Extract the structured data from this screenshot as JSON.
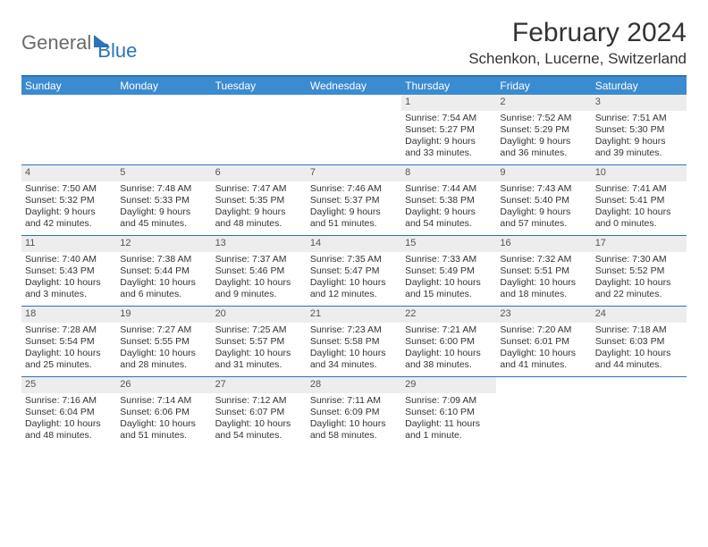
{
  "logo": {
    "part1": "General",
    "part2": "Blue"
  },
  "title": "February 2024",
  "location": "Schenkon, Lucerne, Switzerland",
  "colors": {
    "header_bg": "#3b8bd0",
    "border": "#2a73b8",
    "daynum_bg": "#ededed",
    "text": "#333333",
    "logo_gray": "#6a6a6a"
  },
  "daysOfWeek": [
    "Sunday",
    "Monday",
    "Tuesday",
    "Wednesday",
    "Thursday",
    "Friday",
    "Saturday"
  ],
  "weeks": [
    [
      {
        "empty": true
      },
      {
        "empty": true
      },
      {
        "empty": true
      },
      {
        "empty": true
      },
      {
        "num": "1",
        "sunrise": "Sunrise: 7:54 AM",
        "sunset": "Sunset: 5:27 PM",
        "daylight1": "Daylight: 9 hours",
        "daylight2": "and 33 minutes."
      },
      {
        "num": "2",
        "sunrise": "Sunrise: 7:52 AM",
        "sunset": "Sunset: 5:29 PM",
        "daylight1": "Daylight: 9 hours",
        "daylight2": "and 36 minutes."
      },
      {
        "num": "3",
        "sunrise": "Sunrise: 7:51 AM",
        "sunset": "Sunset: 5:30 PM",
        "daylight1": "Daylight: 9 hours",
        "daylight2": "and 39 minutes."
      }
    ],
    [
      {
        "num": "4",
        "sunrise": "Sunrise: 7:50 AM",
        "sunset": "Sunset: 5:32 PM",
        "daylight1": "Daylight: 9 hours",
        "daylight2": "and 42 minutes."
      },
      {
        "num": "5",
        "sunrise": "Sunrise: 7:48 AM",
        "sunset": "Sunset: 5:33 PM",
        "daylight1": "Daylight: 9 hours",
        "daylight2": "and 45 minutes."
      },
      {
        "num": "6",
        "sunrise": "Sunrise: 7:47 AM",
        "sunset": "Sunset: 5:35 PM",
        "daylight1": "Daylight: 9 hours",
        "daylight2": "and 48 minutes."
      },
      {
        "num": "7",
        "sunrise": "Sunrise: 7:46 AM",
        "sunset": "Sunset: 5:37 PM",
        "daylight1": "Daylight: 9 hours",
        "daylight2": "and 51 minutes."
      },
      {
        "num": "8",
        "sunrise": "Sunrise: 7:44 AM",
        "sunset": "Sunset: 5:38 PM",
        "daylight1": "Daylight: 9 hours",
        "daylight2": "and 54 minutes."
      },
      {
        "num": "9",
        "sunrise": "Sunrise: 7:43 AM",
        "sunset": "Sunset: 5:40 PM",
        "daylight1": "Daylight: 9 hours",
        "daylight2": "and 57 minutes."
      },
      {
        "num": "10",
        "sunrise": "Sunrise: 7:41 AM",
        "sunset": "Sunset: 5:41 PM",
        "daylight1": "Daylight: 10 hours",
        "daylight2": "and 0 minutes."
      }
    ],
    [
      {
        "num": "11",
        "sunrise": "Sunrise: 7:40 AM",
        "sunset": "Sunset: 5:43 PM",
        "daylight1": "Daylight: 10 hours",
        "daylight2": "and 3 minutes."
      },
      {
        "num": "12",
        "sunrise": "Sunrise: 7:38 AM",
        "sunset": "Sunset: 5:44 PM",
        "daylight1": "Daylight: 10 hours",
        "daylight2": "and 6 minutes."
      },
      {
        "num": "13",
        "sunrise": "Sunrise: 7:37 AM",
        "sunset": "Sunset: 5:46 PM",
        "daylight1": "Daylight: 10 hours",
        "daylight2": "and 9 minutes."
      },
      {
        "num": "14",
        "sunrise": "Sunrise: 7:35 AM",
        "sunset": "Sunset: 5:47 PM",
        "daylight1": "Daylight: 10 hours",
        "daylight2": "and 12 minutes."
      },
      {
        "num": "15",
        "sunrise": "Sunrise: 7:33 AM",
        "sunset": "Sunset: 5:49 PM",
        "daylight1": "Daylight: 10 hours",
        "daylight2": "and 15 minutes."
      },
      {
        "num": "16",
        "sunrise": "Sunrise: 7:32 AM",
        "sunset": "Sunset: 5:51 PM",
        "daylight1": "Daylight: 10 hours",
        "daylight2": "and 18 minutes."
      },
      {
        "num": "17",
        "sunrise": "Sunrise: 7:30 AM",
        "sunset": "Sunset: 5:52 PM",
        "daylight1": "Daylight: 10 hours",
        "daylight2": "and 22 minutes."
      }
    ],
    [
      {
        "num": "18",
        "sunrise": "Sunrise: 7:28 AM",
        "sunset": "Sunset: 5:54 PM",
        "daylight1": "Daylight: 10 hours",
        "daylight2": "and 25 minutes."
      },
      {
        "num": "19",
        "sunrise": "Sunrise: 7:27 AM",
        "sunset": "Sunset: 5:55 PM",
        "daylight1": "Daylight: 10 hours",
        "daylight2": "and 28 minutes."
      },
      {
        "num": "20",
        "sunrise": "Sunrise: 7:25 AM",
        "sunset": "Sunset: 5:57 PM",
        "daylight1": "Daylight: 10 hours",
        "daylight2": "and 31 minutes."
      },
      {
        "num": "21",
        "sunrise": "Sunrise: 7:23 AM",
        "sunset": "Sunset: 5:58 PM",
        "daylight1": "Daylight: 10 hours",
        "daylight2": "and 34 minutes."
      },
      {
        "num": "22",
        "sunrise": "Sunrise: 7:21 AM",
        "sunset": "Sunset: 6:00 PM",
        "daylight1": "Daylight: 10 hours",
        "daylight2": "and 38 minutes."
      },
      {
        "num": "23",
        "sunrise": "Sunrise: 7:20 AM",
        "sunset": "Sunset: 6:01 PM",
        "daylight1": "Daylight: 10 hours",
        "daylight2": "and 41 minutes."
      },
      {
        "num": "24",
        "sunrise": "Sunrise: 7:18 AM",
        "sunset": "Sunset: 6:03 PM",
        "daylight1": "Daylight: 10 hours",
        "daylight2": "and 44 minutes."
      }
    ],
    [
      {
        "num": "25",
        "sunrise": "Sunrise: 7:16 AM",
        "sunset": "Sunset: 6:04 PM",
        "daylight1": "Daylight: 10 hours",
        "daylight2": "and 48 minutes."
      },
      {
        "num": "26",
        "sunrise": "Sunrise: 7:14 AM",
        "sunset": "Sunset: 6:06 PM",
        "daylight1": "Daylight: 10 hours",
        "daylight2": "and 51 minutes."
      },
      {
        "num": "27",
        "sunrise": "Sunrise: 7:12 AM",
        "sunset": "Sunset: 6:07 PM",
        "daylight1": "Daylight: 10 hours",
        "daylight2": "and 54 minutes."
      },
      {
        "num": "28",
        "sunrise": "Sunrise: 7:11 AM",
        "sunset": "Sunset: 6:09 PM",
        "daylight1": "Daylight: 10 hours",
        "daylight2": "and 58 minutes."
      },
      {
        "num": "29",
        "sunrise": "Sunrise: 7:09 AM",
        "sunset": "Sunset: 6:10 PM",
        "daylight1": "Daylight: 11 hours",
        "daylight2": "and 1 minute."
      },
      {
        "empty": true
      },
      {
        "empty": true
      }
    ]
  ]
}
